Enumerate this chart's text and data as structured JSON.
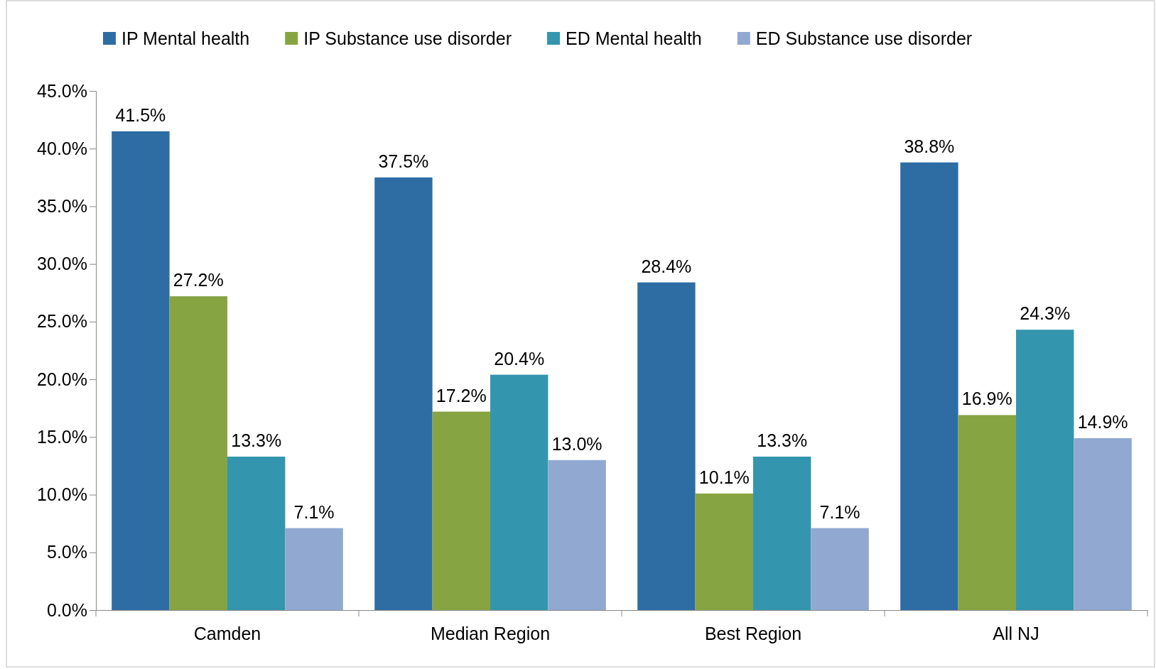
{
  "chart_data": {
    "type": "bar",
    "categories": [
      "Camden",
      "Median Region",
      "Best Region",
      "All NJ"
    ],
    "series": [
      {
        "name": "IP Mental health",
        "color": "#2e6ca4",
        "values": [
          41.5,
          37.5,
          28.4,
          38.8
        ],
        "value_labels": [
          "41.5%",
          "37.5%",
          "28.4%",
          "38.8%"
        ]
      },
      {
        "name": "IP Substance use disorder",
        "color": "#87a443",
        "values": [
          27.2,
          17.2,
          10.1,
          16.9
        ],
        "value_labels": [
          "27.2%",
          "17.2%",
          "10.1%",
          "16.9%"
        ]
      },
      {
        "name": "ED Mental health",
        "color": "#3396ae",
        "values": [
          13.3,
          20.4,
          13.3,
          24.3
        ],
        "value_labels": [
          "13.3%",
          "20.4%",
          "13.3%",
          "24.3%"
        ]
      },
      {
        "name": "ED Substance use disorder",
        "color": "#91a9d1",
        "values": [
          7.1,
          13.0,
          7.1,
          14.9
        ],
        "value_labels": [
          "7.1%",
          "13.0%",
          "7.1%",
          "14.9%"
        ]
      }
    ],
    "ylim": [
      0,
      45
    ],
    "yticks": [
      {
        "value": 0,
        "label": "0.0%"
      },
      {
        "value": 5,
        "label": "5.0%"
      },
      {
        "value": 10,
        "label": "10.0%"
      },
      {
        "value": 15,
        "label": "15.0%"
      },
      {
        "value": 20,
        "label": "20.0%"
      },
      {
        "value": 25,
        "label": "25.0%"
      },
      {
        "value": 30,
        "label": "30.0%"
      },
      {
        "value": 35,
        "label": "35.0%"
      },
      {
        "value": 40,
        "label": "40.0%"
      },
      {
        "value": 45,
        "label": "45.0%"
      }
    ],
    "grid": false,
    "legend": "top"
  }
}
